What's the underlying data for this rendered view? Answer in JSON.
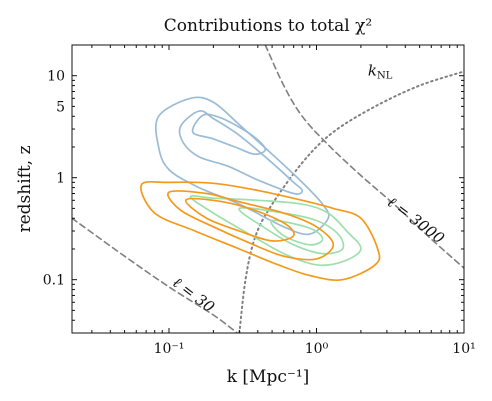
{
  "chart_data": {
    "type": "contour",
    "title": "Contributions to total χ²",
    "xlabel": "k [Mpc⁻¹]",
    "ylabel": "redshift, z",
    "xscale": "log",
    "yscale": "log",
    "xlim": [
      0.022,
      10
    ],
    "ylim": [
      0.03,
      20
    ],
    "xticks": [
      {
        "value": 0.1,
        "label": "10⁻¹"
      },
      {
        "value": 1,
        "label": "10⁰"
      },
      {
        "value": 10,
        "label": "10¹"
      }
    ],
    "yticks": [
      {
        "value": 0.1,
        "label": "0.1"
      },
      {
        "value": 1,
        "label": "1"
      },
      {
        "value": 5,
        "label": "5"
      },
      {
        "value": 10,
        "label": "10"
      }
    ],
    "grid": false,
    "colors": {
      "blue": "#9bbcd6",
      "orange": "#f39a1c",
      "green": "#9ee0ad",
      "reference": "#808080"
    },
    "reference_lines": [
      {
        "label": "ℓ = 30",
        "style": "dashed",
        "points": [
          [
            0.022,
            0.4
          ],
          [
            0.05,
            0.17
          ],
          [
            0.1,
            0.085
          ],
          [
            0.2,
            0.045
          ],
          [
            0.29,
            0.03
          ]
        ]
      },
      {
        "label": "ℓ = 3000",
        "style": "dashed",
        "points": [
          [
            0.45,
            20
          ],
          [
            0.6,
            8
          ],
          [
            0.8,
            4
          ],
          [
            1.2,
            2.1
          ],
          [
            2,
            1.05
          ],
          [
            3.5,
            0.52
          ],
          [
            6,
            0.25
          ],
          [
            10,
            0.13
          ]
        ]
      },
      {
        "label": "k_NL",
        "style": "dotted",
        "points": [
          [
            0.3,
            0.03
          ],
          [
            0.33,
            0.1
          ],
          [
            0.38,
            0.25
          ],
          [
            0.48,
            0.5
          ],
          [
            0.8,
            1.4
          ],
          [
            1.3,
            2.8
          ],
          [
            2.5,
            5
          ],
          [
            5,
            8
          ],
          [
            10,
            11
          ]
        ]
      }
    ],
    "annotations": [
      {
        "text": "ℓ = 30",
        "x": 0.14,
        "y": 0.065,
        "rotation_deg": 37
      },
      {
        "text": "ℓ = 3000",
        "x": 4.5,
        "y": 0.35,
        "rotation_deg": 37
      },
      {
        "text": "kNL",
        "x": 2.7,
        "y": 10
      }
    ],
    "series": [
      {
        "color": "blue",
        "contours": [
          [
            [
              0.085,
              2
            ],
            [
              0.085,
              4
            ],
            [
              0.14,
              6
            ],
            [
              0.2,
              5.5
            ],
            [
              0.3,
              3.3
            ],
            [
              0.5,
              1.7
            ],
            [
              0.8,
              0.9
            ],
            [
              1.1,
              0.55
            ],
            [
              1.2,
              0.4
            ],
            [
              0.9,
              0.28
            ],
            [
              0.6,
              0.33
            ],
            [
              0.3,
              0.55
            ],
            [
              0.16,
              0.8
            ],
            [
              0.1,
              1.2
            ],
            [
              0.085,
              2
            ]
          ],
          [
            [
              0.125,
              2.2
            ],
            [
              0.12,
              3.2
            ],
            [
              0.16,
              4.5
            ],
            [
              0.2,
              3.8
            ],
            [
              0.3,
              2.6
            ],
            [
              0.5,
              1.4
            ],
            [
              0.7,
              0.9
            ],
            [
              0.8,
              0.75
            ],
            [
              0.7,
              0.7
            ],
            [
              0.4,
              0.95
            ],
            [
              0.25,
              1.3
            ],
            [
              0.16,
              1.6
            ],
            [
              0.125,
              2.2
            ]
          ],
          [
            [
              0.145,
              2.8
            ],
            [
              0.17,
              4.1
            ],
            [
              0.22,
              3.9
            ],
            [
              0.28,
              3.3
            ],
            [
              0.38,
              2.5
            ],
            [
              0.45,
              1.9
            ],
            [
              0.38,
              1.7
            ],
            [
              0.28,
              2
            ],
            [
              0.2,
              2.4
            ],
            [
              0.145,
              2.8
            ]
          ]
        ]
      },
      {
        "color": "green",
        "contours": [
          [
            [
              0.14,
              0.65
            ],
            [
              0.2,
              0.63
            ],
            [
              0.4,
              0.6
            ],
            [
              0.8,
              0.55
            ],
            [
              1.2,
              0.45
            ],
            [
              1.6,
              0.3
            ],
            [
              2,
              0.2
            ],
            [
              1.5,
              0.15
            ],
            [
              1,
              0.14
            ],
            [
              0.6,
              0.18
            ],
            [
              0.35,
              0.28
            ],
            [
              0.2,
              0.45
            ],
            [
              0.14,
              0.65
            ]
          ],
          [
            [
              0.3,
              0.5
            ],
            [
              0.6,
              0.45
            ],
            [
              1,
              0.38
            ],
            [
              1.4,
              0.28
            ],
            [
              1.5,
              0.2
            ],
            [
              1.1,
              0.18
            ],
            [
              0.7,
              0.22
            ],
            [
              0.45,
              0.32
            ],
            [
              0.3,
              0.5
            ]
          ],
          [
            [
              0.5,
              0.38
            ],
            [
              0.9,
              0.32
            ],
            [
              1.1,
              0.25
            ],
            [
              0.9,
              0.22
            ],
            [
              0.6,
              0.27
            ],
            [
              0.5,
              0.38
            ]
          ]
        ]
      },
      {
        "color": "orange",
        "contours": [
          [
            [
              0.065,
              0.85
            ],
            [
              0.1,
              0.9
            ],
            [
              0.2,
              0.88
            ],
            [
              0.4,
              0.75
            ],
            [
              0.8,
              0.6
            ],
            [
              1.3,
              0.5
            ],
            [
              2,
              0.4
            ],
            [
              2.6,
              0.2
            ],
            [
              2.5,
              0.14
            ],
            [
              1.5,
              0.1
            ],
            [
              0.9,
              0.11
            ],
            [
              0.55,
              0.14
            ],
            [
              0.3,
              0.2
            ],
            [
              0.15,
              0.3
            ],
            [
              0.08,
              0.45
            ],
            [
              0.065,
              0.85
            ]
          ],
          [
            [
              0.1,
              0.72
            ],
            [
              0.18,
              0.7
            ],
            [
              0.3,
              0.58
            ],
            [
              0.6,
              0.45
            ],
            [
              1,
              0.33
            ],
            [
              1.3,
              0.22
            ],
            [
              1,
              0.16
            ],
            [
              0.6,
              0.17
            ],
            [
              0.35,
              0.23
            ],
            [
              0.2,
              0.33
            ],
            [
              0.12,
              0.48
            ],
            [
              0.1,
              0.72
            ]
          ],
          [
            [
              0.13,
              0.6
            ],
            [
              0.2,
              0.6
            ],
            [
              0.35,
              0.5
            ],
            [
              0.6,
              0.36
            ],
            [
              0.7,
              0.27
            ],
            [
              0.5,
              0.24
            ],
            [
              0.3,
              0.3
            ],
            [
              0.18,
              0.4
            ],
            [
              0.13,
              0.6
            ]
          ]
        ]
      }
    ]
  }
}
